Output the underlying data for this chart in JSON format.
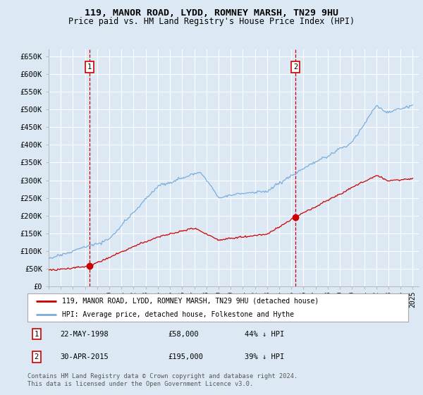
{
  "title_line1": "119, MANOR ROAD, LYDD, ROMNEY MARSH, TN29 9HU",
  "title_line2": "Price paid vs. HM Land Registry's House Price Index (HPI)",
  "background_color": "#dce9f5",
  "plot_bg_color": "#dce9f5",
  "grid_color": "#ffffff",
  "hpi_color": "#7aaddb",
  "price_color": "#cc0000",
  "ylim": [
    0,
    670000
  ],
  "yticks": [
    0,
    50000,
    100000,
    150000,
    200000,
    250000,
    300000,
    350000,
    400000,
    450000,
    500000,
    550000,
    600000,
    650000
  ],
  "ytick_labels": [
    "£0",
    "£50K",
    "£100K",
    "£150K",
    "£200K",
    "£250K",
    "£300K",
    "£350K",
    "£400K",
    "£450K",
    "£500K",
    "£550K",
    "£600K",
    "£650K"
  ],
  "legend_entry1": "119, MANOR ROAD, LYDD, ROMNEY MARSH, TN29 9HU (detached house)",
  "legend_entry2": "HPI: Average price, detached house, Folkestone and Hythe",
  "annotation1_num": "1",
  "annotation1_date": "22-MAY-1998",
  "annotation1_price": "£58,000",
  "annotation1_pct": "44% ↓ HPI",
  "annotation2_num": "2",
  "annotation2_date": "30-APR-2015",
  "annotation2_price": "£195,000",
  "annotation2_pct": "39% ↓ HPI",
  "footer": "Contains HM Land Registry data © Crown copyright and database right 2024.\nThis data is licensed under the Open Government Licence v3.0.",
  "xtick_years": [
    1995,
    1996,
    1997,
    1998,
    1999,
    2000,
    2001,
    2002,
    2003,
    2004,
    2005,
    2006,
    2007,
    2008,
    2009,
    2010,
    2011,
    2012,
    2013,
    2014,
    2015,
    2016,
    2017,
    2018,
    2019,
    2020,
    2021,
    2022,
    2023,
    2024,
    2025
  ],
  "sale1_year": 1998.38,
  "sale1_price": 58000,
  "sale2_year": 2015.33,
  "sale2_price": 195000
}
